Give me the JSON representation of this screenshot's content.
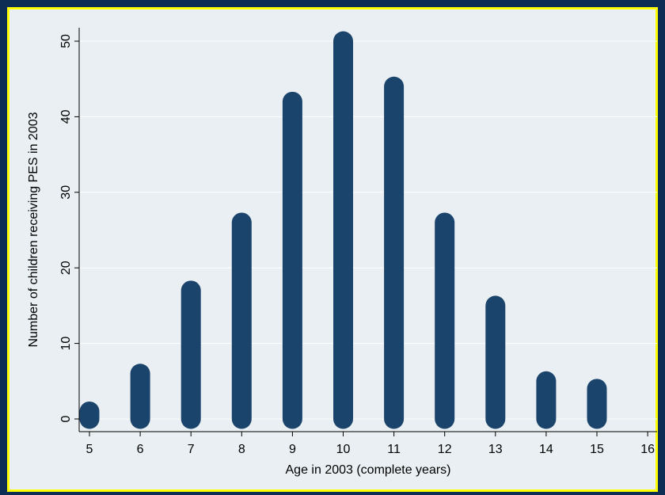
{
  "colors": {
    "background": "#0d2d55",
    "panel": "#e9eff2",
    "border": "#ffff00",
    "bar": "#1b446c",
    "grid": "#ffffff"
  },
  "chart_data": {
    "type": "bar",
    "title": "",
    "xlabel": "Age in 2003 (complete years)",
    "ylabel": "Number of children receiving PES in 2003",
    "x_ticks": [
      "5",
      "6",
      "7",
      "8",
      "9",
      "10",
      "11",
      "12",
      "13",
      "14",
      "15",
      "16"
    ],
    "y_ticks": [
      "0",
      "10",
      "20",
      "30",
      "40",
      "50"
    ],
    "xlim": [
      5,
      16
    ],
    "ylim": [
      0,
      50
    ],
    "grid": true,
    "categories": [
      "5",
      "6",
      "7",
      "8",
      "9",
      "10",
      "11",
      "12",
      "13",
      "14",
      "15"
    ],
    "values": [
      1,
      6,
      17,
      26,
      42,
      50,
      44,
      26,
      15,
      5,
      4
    ]
  }
}
